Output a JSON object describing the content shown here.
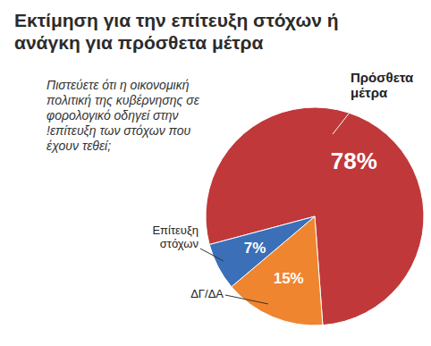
{
  "chart_data": {
    "type": "pie",
    "title": "Εκτίμηση για την επίτευξη στόχων ή ανάγκη για πρόσθετα μέτρα",
    "subtitle": "Πιστεύετε ότι η οικονομική πολιτική της κυβέρνησης σε φορολογικό οδηγεί στην !επίτευξη των στόχων που έχουν τεθεί;",
    "categories": [
      "Πρόσθετα μέτρα",
      "ΔΓ/ΔΑ",
      "Επίτευξη στόχων"
    ],
    "values": [
      78,
      15,
      7
    ],
    "value_labels": [
      "78%",
      "15%",
      "7%"
    ],
    "colors": [
      "#c1383a",
      "#f0852f",
      "#3b6fb8"
    ],
    "data_labels": true
  }
}
